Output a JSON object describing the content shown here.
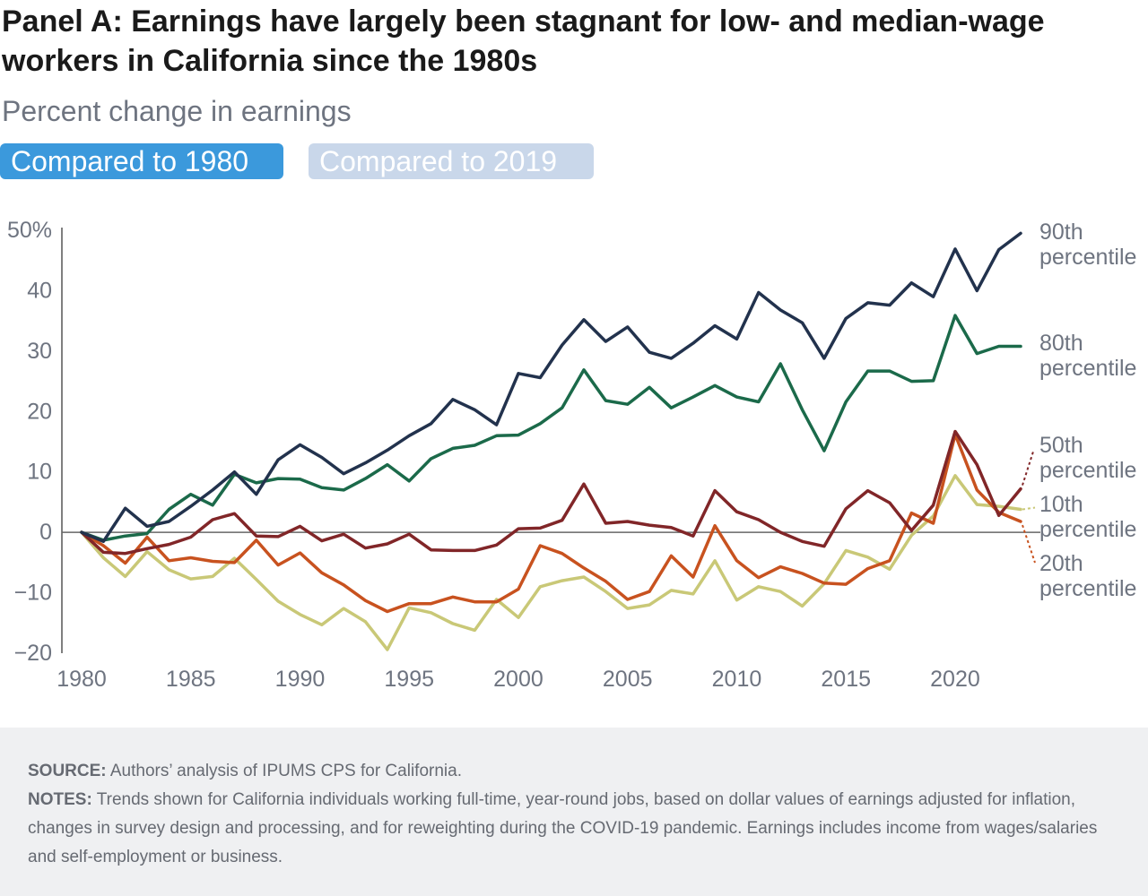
{
  "header": {
    "title": "Panel A: Earnings have largely been stagnant for low- and median-wage workers in California since the 1980s",
    "subtitle": "Percent change in earnings"
  },
  "toggles": [
    {
      "label": "Compared to 1980",
      "active": true
    },
    {
      "label": "Compared to 2019",
      "active": false
    }
  ],
  "footer": {
    "source_label": "SOURCE:",
    "source_text": "Authors’ analysis of IPUMS CPS for California.",
    "notes_label": "NOTES:",
    "notes_text": "Trends shown for California individuals working full-time, year-round jobs, based on dollar values of earnings adjusted for inflation, changes in survey design and processing, and for reweighting during the COVID-19 pandemic. Earnings includes income from wages/salaries and self-employment or business."
  },
  "chart_data": {
    "type": "line",
    "title": "Panel A: Earnings have largely been stagnant for low- and median-wage workers in California since the 1980s",
    "ylabel": "Percent change in earnings",
    "xlim": [
      1980,
      2023
    ],
    "ylim": [
      -20,
      50
    ],
    "x_ticks": [
      1980,
      1985,
      1990,
      1995,
      2000,
      2005,
      2010,
      2015,
      2020
    ],
    "y_ticks": [
      -20,
      -10,
      0,
      10,
      20,
      30,
      40,
      50
    ],
    "y_tick_labels": [
      "−20",
      "−10",
      "0",
      "10",
      "20",
      "30",
      "40",
      "50%"
    ],
    "grid": false,
    "zero_line": true,
    "legend": "direct labels at right",
    "x": [
      1980,
      1981,
      1982,
      1983,
      1984,
      1985,
      1986,
      1987,
      1988,
      1989,
      1990,
      1991,
      1992,
      1993,
      1994,
      1995,
      1996,
      1997,
      1998,
      1999,
      2000,
      2001,
      2002,
      2003,
      2004,
      2005,
      2006,
      2007,
      2008,
      2009,
      2010,
      2011,
      2012,
      2013,
      2014,
      2015,
      2016,
      2017,
      2018,
      2019,
      2020,
      2021,
      2022,
      2023
    ],
    "series": [
      {
        "name": "90th percentile",
        "color": "#22324d",
        "values": [
          0,
          -1.5,
          4,
          1,
          1.8,
          4.3,
          7,
          10,
          6.3,
          12,
          14.5,
          12.4,
          9.7,
          11.5,
          13.6,
          16,
          18,
          22,
          20.3,
          17.8,
          26.3,
          25.6,
          31,
          35.2,
          31.6,
          34,
          29.8,
          28.8,
          31.3,
          34.2,
          32,
          39.7,
          36.8,
          34.7,
          28.8,
          35.4,
          38,
          37.6,
          41.3,
          39,
          46.9,
          40,
          46.8,
          49.5
        ]
      },
      {
        "name": "80th percentile",
        "color": "#1b6a4a",
        "values": [
          0,
          -1.3,
          -0.6,
          -0.2,
          3.8,
          6.3,
          4.5,
          9.6,
          8.2,
          8.9,
          8.8,
          7.4,
          7,
          8.9,
          11.2,
          8.5,
          12.2,
          13.9,
          14.4,
          16,
          16.1,
          18,
          20.6,
          26.9,
          21.8,
          21.2,
          24,
          20.6,
          22.4,
          24.3,
          22.4,
          21.6,
          27.9,
          20.3,
          13.5,
          21.6,
          26.7,
          26.7,
          25,
          25.1,
          35.9,
          29.6,
          30.8,
          30.8
        ]
      },
      {
        "name": "50th percentile",
        "color": "#812628",
        "values": [
          0,
          -3.3,
          -3.5,
          -2.7,
          -2,
          -0.8,
          2.1,
          3.1,
          -0.6,
          -0.7,
          1,
          -1.4,
          -0.3,
          -2.6,
          -1.9,
          -0.3,
          -2.9,
          -3,
          -3,
          -2.1,
          0.6,
          0.7,
          2,
          8,
          1.5,
          1.8,
          1.2,
          0.8,
          -0.6,
          6.9,
          3.4,
          2.1,
          0,
          -1.5,
          -2.3,
          3.9,
          6.9,
          4.9,
          0.3,
          4.5,
          16.7,
          11.2,
          2.8,
          7.2
        ]
      },
      {
        "name": "20th percentile",
        "color": "#c8521f",
        "values": [
          0,
          -2.2,
          -5.1,
          -0.8,
          -4.7,
          -4.2,
          -4.8,
          -5,
          -1.3,
          -5.4,
          -3.4,
          -6.7,
          -8.7,
          -11.3,
          -13.1,
          -11.8,
          -11.8,
          -10.7,
          -11.5,
          -11.5,
          -9.4,
          -2.2,
          -3.5,
          -5.9,
          -8.1,
          -11.1,
          -9.8,
          -3.9,
          -7.4,
          1.1,
          -4.7,
          -7.5,
          -5.7,
          -6.8,
          -8.4,
          -8.6,
          -6,
          -4.7,
          3.2,
          1.5,
          16.2,
          7,
          3.3,
          1.8
        ]
      },
      {
        "name": "10th percentile",
        "color": "#c9c877",
        "values": [
          0,
          -4.2,
          -7.3,
          -3.2,
          -6.2,
          -7.7,
          -7.3,
          -4.3,
          -7.8,
          -11.4,
          -13.6,
          -15.3,
          -12.6,
          -14.8,
          -19.4,
          -12.5,
          -13.3,
          -15.1,
          -16.2,
          -11.1,
          -14.1,
          -9,
          -8,
          -7.4,
          -9.8,
          -12.6,
          -12,
          -9.6,
          -10.2,
          -4.7,
          -11.2,
          -9,
          -9.8,
          -12.2,
          -8.5,
          -3,
          -4.1,
          -6.1,
          -0.5,
          2.7,
          9.4,
          4.6,
          4.3,
          3.8
        ]
      }
    ],
    "labels": [
      {
        "series": "90th percentile",
        "lines": [
          "90th",
          "percentile"
        ]
      },
      {
        "series": "80th percentile",
        "lines": [
          "80th",
          "percentile"
        ]
      },
      {
        "series": "50th percentile",
        "lines": [
          "50th",
          "percentile"
        ]
      },
      {
        "series": "10th percentile",
        "lines": [
          "10th",
          "percentile"
        ]
      },
      {
        "series": "20th percentile",
        "lines": [
          "20th",
          "percentile"
        ]
      }
    ]
  }
}
